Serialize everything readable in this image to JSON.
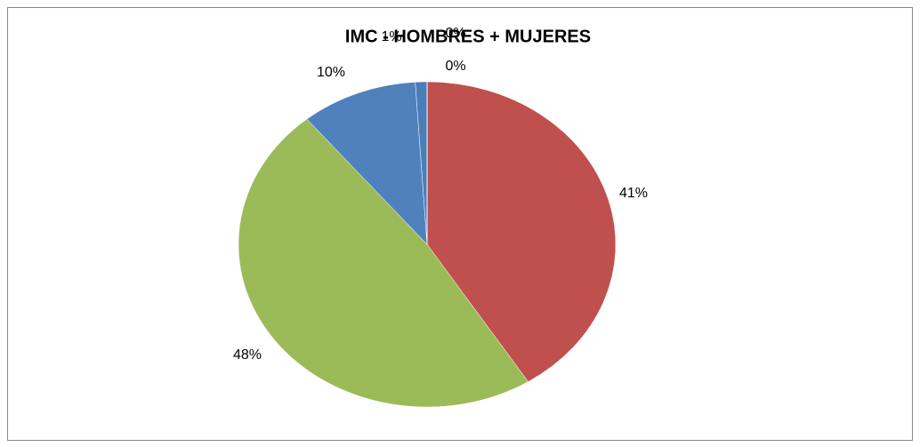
{
  "chart_data": {
    "type": "pie",
    "title": "IMC - HOMBRES + MUJERES",
    "values": [
      41,
      48,
      10,
      1,
      0,
      0
    ],
    "value_labels": [
      "41%",
      "48%",
      "10%",
      "1%",
      "0%",
      "0%"
    ],
    "colors": [
      "#c0504d",
      "#9bbb59",
      "#4f81bd",
      "#4a7ebb",
      "#8064a2",
      "#f79646"
    ]
  }
}
